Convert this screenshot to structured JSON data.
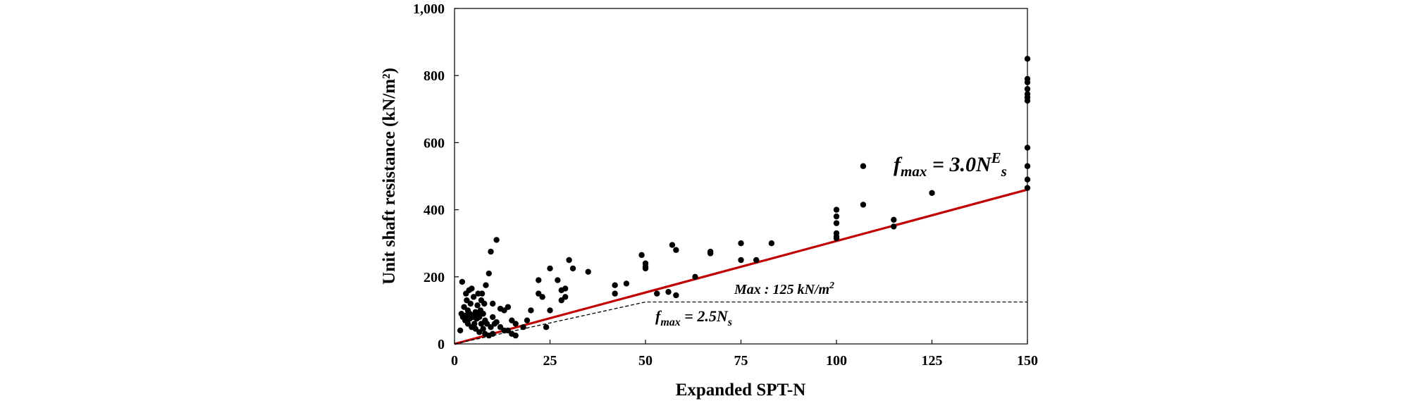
{
  "chart_data": {
    "type": "scatter",
    "title": "",
    "xlabel": "Expanded SPT-N",
    "ylabel": "Unit shaft resistance (kN/m²)",
    "xlim": [
      0,
      150
    ],
    "ylim": [
      0,
      1000
    ],
    "x_ticks": [
      0,
      25,
      50,
      75,
      100,
      125,
      150
    ],
    "x_tick_labels": [
      "0",
      "25",
      "50",
      "75",
      "100",
      "125",
      "150"
    ],
    "y_ticks": [
      0,
      200,
      400,
      600,
      800,
      1000
    ],
    "y_tick_labels": [
      "0",
      "200",
      "400",
      "600",
      "800",
      "1,000"
    ],
    "grid": false,
    "legend": "none",
    "series": [
      {
        "marker": "circle",
        "color": "#000000",
        "points": [
          [
            1.5,
            40
          ],
          [
            1.8,
            90
          ],
          [
            2,
            185
          ],
          [
            2.2,
            80
          ],
          [
            2.5,
            110
          ],
          [
            2.8,
            70
          ],
          [
            3,
            85
          ],
          [
            3,
            150
          ],
          [
            3.2,
            130
          ],
          [
            3.5,
            100
          ],
          [
            3.5,
            60
          ],
          [
            3.8,
            160
          ],
          [
            4,
            75
          ],
          [
            4,
            90
          ],
          [
            4.2,
            120
          ],
          [
            4.5,
            165
          ],
          [
            4.5,
            50
          ],
          [
            4.8,
            85
          ],
          [
            5,
            140
          ],
          [
            5,
            80
          ],
          [
            5.2,
            60
          ],
          [
            5.5,
            95
          ],
          [
            5.5,
            45
          ],
          [
            5.8,
            75
          ],
          [
            6,
            115
          ],
          [
            6,
            90
          ],
          [
            6.2,
            150
          ],
          [
            6.5,
            80
          ],
          [
            6.5,
            35
          ],
          [
            6.8,
            100
          ],
          [
            7,
            130
          ],
          [
            7,
            60
          ],
          [
            7.2,
            150
          ],
          [
            7.5,
            90
          ],
          [
            7.5,
            45
          ],
          [
            7.8,
            120
          ],
          [
            8,
            30
          ],
          [
            8,
            70
          ],
          [
            8.2,
            175
          ],
          [
            8.5,
            60
          ],
          [
            9,
            210
          ],
          [
            9,
            25
          ],
          [
            9.5,
            275
          ],
          [
            9.5,
            50
          ],
          [
            10,
            30
          ],
          [
            10,
            80
          ],
          [
            10,
            120
          ],
          [
            10.5,
            60
          ],
          [
            11,
            310
          ],
          [
            11,
            65
          ],
          [
            12,
            105
          ],
          [
            12,
            50
          ],
          [
            13,
            40
          ],
          [
            13,
            100
          ],
          [
            14,
            110
          ],
          [
            14,
            40
          ],
          [
            15,
            70
          ],
          [
            15,
            30
          ],
          [
            16,
            60
          ],
          [
            16,
            25
          ],
          [
            18,
            50
          ],
          [
            19,
            70
          ],
          [
            20,
            100
          ],
          [
            22,
            190
          ],
          [
            22,
            150
          ],
          [
            23,
            140
          ],
          [
            24,
            50
          ],
          [
            25,
            100
          ],
          [
            25,
            225
          ],
          [
            27,
            190
          ],
          [
            28,
            130
          ],
          [
            28,
            160
          ],
          [
            29,
            140
          ],
          [
            29,
            165
          ],
          [
            30,
            250
          ],
          [
            31,
            225
          ],
          [
            35,
            215
          ],
          [
            42,
            150
          ],
          [
            42,
            175
          ],
          [
            45,
            180
          ],
          [
            49,
            265
          ],
          [
            50,
            240
          ],
          [
            50,
            230
          ],
          [
            50,
            225
          ],
          [
            53,
            150
          ],
          [
            56,
            155
          ],
          [
            57,
            295
          ],
          [
            58,
            280
          ],
          [
            58,
            145
          ],
          [
            63,
            200
          ],
          [
            67,
            270
          ],
          [
            67,
            275
          ],
          [
            75,
            300
          ],
          [
            75,
            250
          ],
          [
            79,
            250
          ],
          [
            83,
            300
          ],
          [
            100,
            400
          ],
          [
            100,
            380
          ],
          [
            100,
            360
          ],
          [
            100,
            330
          ],
          [
            100,
            320
          ],
          [
            100,
            315
          ],
          [
            107,
            530
          ],
          [
            107,
            415
          ],
          [
            115,
            370
          ],
          [
            115,
            350
          ],
          [
            125,
            450
          ],
          [
            150,
            850
          ],
          [
            150,
            790
          ],
          [
            150,
            780
          ],
          [
            150,
            760
          ],
          [
            150,
            745
          ],
          [
            150,
            735
          ],
          [
            150,
            725
          ],
          [
            150,
            585
          ],
          [
            150,
            530
          ],
          [
            150,
            490
          ],
          [
            150,
            465
          ]
        ]
      }
    ],
    "lines": [
      {
        "name": "fmax = 3.0NEs",
        "style": "solid",
        "color": "#c00000",
        "x": [
          0,
          150
        ],
        "y": [
          0,
          460
        ]
      },
      {
        "name": "fmax = 2.5Ns",
        "style": "dashed",
        "color": "#000000",
        "x": [
          0,
          50,
          150
        ],
        "y": [
          0,
          125,
          125
        ]
      }
    ],
    "annotations": {
      "red_line_label": {
        "base": "f",
        "sub": "max",
        "mid": " = 3.0N",
        "sup": "E",
        "sub2": "s"
      },
      "dashed_line_label": {
        "base": "f",
        "sub": "max",
        "mid": " = 2.5N",
        "sub2": "s"
      },
      "cap_label": {
        "text": "Max : 125 kN/m",
        "sup": "2"
      }
    }
  }
}
